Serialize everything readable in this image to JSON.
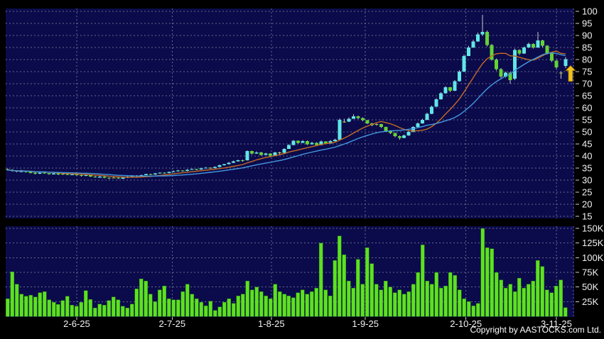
{
  "chart_data": {
    "type": "candlestick",
    "title": "",
    "legend_position": "none",
    "grid": true,
    "price_axis": {
      "side": "right",
      "max": 100,
      "min": 15,
      "step": 5,
      "labels": [
        "100",
        "95",
        "90",
        "85",
        "80",
        "75",
        "70",
        "65",
        "60",
        "55",
        "50",
        "45",
        "40",
        "35",
        "30",
        "25",
        "20",
        "15"
      ]
    },
    "volume_axis": {
      "side": "right",
      "ticks": [
        {
          "label": "150K",
          "value": 150
        },
        {
          "label": "125K",
          "value": 125
        },
        {
          "label": "100K",
          "value": 100
        },
        {
          "label": "75K",
          "value": 75
        },
        {
          "label": "50K",
          "value": 50
        },
        {
          "label": "25K",
          "value": 25
        }
      ]
    },
    "date_ticks": [
      {
        "label": "2-6-25",
        "index": 15
      },
      {
        "label": "2-7-25",
        "index": 35.7
      },
      {
        "label": "1-8-25",
        "index": 57.2
      },
      {
        "label": "1-9-25",
        "index": 77.6
      },
      {
        "label": "2-10-25",
        "index": 99.4
      },
      {
        "label": "3-11-25",
        "index": 119
      }
    ],
    "candles": [
      [
        34.6,
        34.9,
        33.9,
        34.2
      ],
      [
        34.3,
        34.5,
        33.5,
        33.8
      ],
      [
        33.9,
        34.1,
        33.2,
        33.5
      ],
      [
        33.4,
        34.2,
        33.3,
        33.9
      ],
      [
        33.9,
        34.0,
        33.1,
        33.4
      ],
      [
        33.5,
        33.7,
        32.8,
        33.0
      ],
      [
        33.1,
        33.3,
        32.4,
        32.7
      ],
      [
        32.6,
        33.3,
        32.5,
        33.1
      ],
      [
        33.1,
        33.3,
        32.6,
        32.8
      ],
      [
        32.9,
        33.0,
        32.2,
        32.5
      ],
      [
        32.4,
        33.0,
        32.3,
        32.8
      ],
      [
        32.8,
        32.9,
        32.1,
        32.4
      ],
      [
        32.5,
        32.8,
        32.2,
        32.6
      ],
      [
        32.7,
        32.8,
        32.0,
        32.2
      ],
      [
        32.2,
        32.6,
        32.0,
        32.4
      ],
      [
        32.4,
        32.5,
        31.8,
        32.1
      ],
      [
        32.1,
        32.3,
        31.5,
        31.8
      ],
      [
        31.7,
        32.2,
        31.6,
        32.0
      ],
      [
        32.0,
        32.1,
        31.3,
        31.5
      ],
      [
        31.5,
        31.7,
        31.0,
        31.2
      ],
      [
        31.1,
        31.7,
        31.0,
        31.5
      ],
      [
        31.5,
        31.6,
        30.8,
        31.0
      ],
      [
        31.0,
        31.2,
        30.5,
        30.8
      ],
      [
        31.0,
        31.3,
        30.7,
        31.1
      ],
      [
        31.1,
        31.2,
        30.4,
        30.7
      ],
      [
        30.6,
        31.2,
        30.5,
        31.0
      ],
      [
        31.0,
        31.6,
        30.9,
        31.4
      ],
      [
        31.4,
        32.0,
        31.3,
        31.8
      ],
      [
        31.9,
        32.0,
        31.3,
        31.6
      ],
      [
        31.6,
        32.3,
        31.5,
        32.1
      ],
      [
        32.1,
        32.7,
        32.0,
        32.5
      ],
      [
        32.5,
        32.6,
        32.0,
        32.3
      ],
      [
        32.3,
        33.0,
        32.2,
        32.8
      ],
      [
        32.8,
        33.3,
        32.7,
        33.1
      ],
      [
        33.1,
        33.2,
        32.6,
        32.9
      ],
      [
        32.9,
        33.6,
        32.8,
        33.4
      ],
      [
        33.4,
        33.9,
        33.3,
        33.7
      ],
      [
        33.7,
        34.2,
        33.6,
        34.0
      ],
      [
        34.0,
        34.1,
        33.5,
        33.8
      ],
      [
        33.8,
        34.5,
        33.7,
        34.3
      ],
      [
        34.3,
        34.8,
        34.2,
        34.6
      ],
      [
        34.6,
        34.7,
        34.1,
        34.4
      ],
      [
        34.4,
        35.1,
        34.3,
        34.9
      ],
      [
        34.9,
        35.4,
        34.8,
        35.2
      ],
      [
        35.1,
        35.3,
        34.7,
        35.0
      ],
      [
        35.0,
        35.7,
        34.9,
        35.5
      ],
      [
        35.5,
        36.4,
        35.4,
        36.2
      ],
      [
        36.2,
        36.8,
        36.1,
        36.6
      ],
      [
        36.6,
        37.5,
        36.5,
        37.2
      ],
      [
        37.2,
        38.1,
        37.1,
        37.8
      ],
      [
        37.8,
        38.5,
        37.7,
        38.2
      ],
      [
        38.3,
        38.5,
        37.7,
        38.0
      ],
      [
        38.2,
        42.4,
        38.1,
        42.0
      ],
      [
        42.0,
        42.2,
        40.6,
        41.0
      ],
      [
        41.0,
        41.9,
        40.9,
        41.5
      ],
      [
        41.5,
        41.7,
        40.2,
        40.5
      ],
      [
        40.5,
        41.3,
        40.4,
        41.0
      ],
      [
        41.0,
        41.2,
        39.8,
        40.2
      ],
      [
        40.2,
        41.8,
        40.1,
        41.5
      ],
      [
        41.4,
        41.8,
        40.8,
        41.3
      ],
      [
        41.3,
        43.3,
        41.2,
        43.0
      ],
      [
        43.0,
        44.9,
        42.9,
        44.5
      ],
      [
        44.5,
        46.6,
        44.4,
        46.3
      ],
      [
        46.3,
        46.5,
        45.1,
        45.5
      ],
      [
        45.5,
        46.6,
        45.4,
        46.2
      ],
      [
        46.2,
        46.4,
        44.5,
        44.8
      ],
      [
        44.8,
        45.9,
        44.7,
        45.5
      ],
      [
        45.5,
        45.7,
        44.2,
        44.5
      ],
      [
        44.5,
        46.4,
        44.4,
        46.0
      ],
      [
        46.0,
        46.2,
        44.9,
        45.2
      ],
      [
        45.2,
        46.6,
        45.1,
        46.2
      ],
      [
        46.2,
        47.2,
        46.1,
        46.8
      ],
      [
        46.8,
        55.6,
        46.7,
        55.0
      ],
      [
        54.3,
        55.4,
        53.8,
        54.2
      ],
      [
        54.2,
        56.0,
        54.1,
        55.5
      ],
      [
        55.5,
        57.3,
        55.4,
        56.5
      ],
      [
        56.5,
        56.7,
        55.3,
        55.8
      ],
      [
        55.8,
        56.0,
        54.4,
        54.8
      ],
      [
        54.8,
        55.0,
        53.2,
        53.5
      ],
      [
        53.5,
        53.8,
        52.4,
        52.8
      ],
      [
        53.1,
        53.6,
        52.6,
        53.2
      ],
      [
        53.2,
        53.4,
        51.6,
        52.0
      ],
      [
        52.0,
        52.2,
        50.1,
        50.5
      ],
      [
        50.5,
        50.8,
        49.1,
        49.5
      ],
      [
        49.5,
        49.7,
        47.8,
        48.2
      ],
      [
        48.2,
        48.5,
        46.8,
        47.5
      ],
      [
        47.5,
        48.9,
        47.4,
        48.5
      ],
      [
        48.5,
        50.4,
        48.4,
        50.0
      ],
      [
        50.0,
        52.4,
        49.9,
        52.0
      ],
      [
        52.0,
        53.9,
        51.9,
        53.5
      ],
      [
        53.5,
        55.4,
        53.4,
        55.0
      ],
      [
        55.0,
        57.9,
        54.9,
        57.5
      ],
      [
        57.5,
        60.9,
        57.4,
        60.5
      ],
      [
        60.5,
        63.9,
        60.4,
        63.5
      ],
      [
        63.5,
        66.5,
        63.4,
        66.0
      ],
      [
        66.0,
        69.0,
        65.9,
        68.5
      ],
      [
        68.5,
        68.7,
        66.5,
        67.0
      ],
      [
        67.0,
        71.5,
        66.9,
        71.0
      ],
      [
        71.0,
        75.6,
        70.9,
        75.0
      ],
      [
        75.0,
        82.0,
        74.9,
        81.5
      ],
      [
        81.5,
        85.8,
        81.4,
        85.0
      ],
      [
        85.0,
        88.2,
        84.9,
        87.5
      ],
      [
        87.5,
        91.2,
        87.4,
        90.5
      ],
      [
        90.5,
        98.5,
        89.8,
        91.5
      ],
      [
        91.5,
        92.0,
        85.5,
        86.0
      ],
      [
        86.0,
        86.5,
        79.5,
        80.0
      ],
      [
        80.0,
        80.5,
        75.5,
        76.0
      ],
      [
        76.0,
        76.5,
        72.4,
        73.0
      ],
      [
        73.0,
        75.0,
        72.5,
        74.5
      ],
      [
        74.5,
        74.8,
        70.0,
        71.5
      ],
      [
        72.0,
        84.5,
        71.5,
        84.0
      ],
      [
        84.0,
        84.3,
        81.9,
        82.5
      ],
      [
        82.5,
        85.5,
        82.4,
        85.0
      ],
      [
        85.0,
        87.0,
        84.9,
        86.5
      ],
      [
        86.5,
        86.8,
        84.5,
        85.0
      ],
      [
        85.0,
        91.5,
        84.9,
        88.0
      ],
      [
        88.0,
        88.3,
        85.2,
        85.8
      ],
      [
        85.8,
        86.0,
        82.0,
        82.5
      ],
      [
        82.5,
        82.8,
        79.0,
        79.5
      ],
      [
        79.5,
        79.8,
        76.2,
        76.8
      ],
      [
        74.5,
        75.2,
        72.0,
        74.4
      ],
      [
        77.3,
        81.0,
        76.4,
        80.2
      ]
    ],
    "volumes_k": [
      30,
      76,
      55,
      38,
      34,
      36,
      33,
      40,
      42,
      28,
      24,
      20,
      27,
      34,
      19,
      17,
      24,
      44,
      29,
      14,
      21,
      19,
      27,
      33,
      28,
      17,
      14,
      21,
      47,
      64,
      60,
      38,
      25,
      45,
      52,
      30,
      28,
      28,
      42,
      55,
      38,
      30,
      24,
      18,
      26,
      10,
      16,
      24,
      30,
      22,
      35,
      38,
      60,
      45,
      50,
      42,
      35,
      30,
      55,
      42,
      38,
      35,
      32,
      40,
      45,
      38,
      42,
      48,
      125,
      45,
      35,
      95,
      137,
      105,
      60,
      48,
      97,
      55,
      117,
      90,
      55,
      45,
      60,
      50,
      40,
      45,
      38,
      42,
      55,
      75,
      122,
      60,
      55,
      75,
      48,
      52,
      75,
      70,
      45,
      30,
      25,
      18,
      22,
      150,
      117,
      115,
      75,
      62,
      48,
      55,
      42,
      65,
      48,
      55,
      60,
      95,
      85,
      45,
      40,
      52,
      62,
      15
    ],
    "moving_averages": [
      {
        "name": "MA10",
        "period": 10,
        "color": "#c56a22"
      },
      {
        "name": "MA20",
        "period": 20,
        "color": "#4598e0"
      }
    ],
    "annotation_arrow": {
      "symbol": "up-arrow",
      "index": 121,
      "tip_price": 77.6,
      "base_price": 70.9,
      "color": "#f0c01e",
      "outline": "#6b5500"
    },
    "colors": {
      "background": "#000000",
      "pane": "#0b0b4b",
      "grid": "#8f8fae",
      "up_candle": "#60e6e6",
      "down_candle": "#64d234",
      "doji_candle": "#bdc93e",
      "wick": "#c8c8c8",
      "volume_bar": "#5ee022",
      "axis_text": "#f2f2f2",
      "tick_mark": "#cccccc"
    },
    "copyright": "Copyright by AASTOCKS.com Ltd."
  }
}
